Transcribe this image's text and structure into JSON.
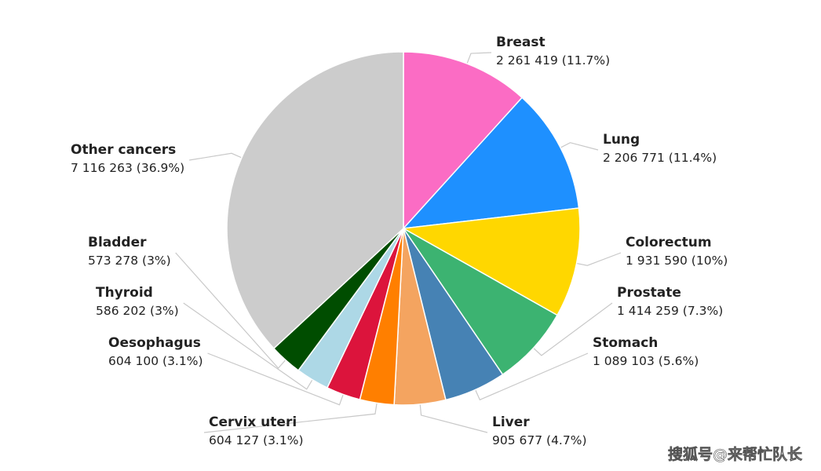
{
  "chart_data": {
    "type": "pie",
    "categories": [
      "Breast",
      "Lung",
      "Colorectum",
      "Prostate",
      "Stomach",
      "Liver",
      "Cervix uteri",
      "Oesophagus",
      "Thyroid",
      "Bladder",
      "Other cancers"
    ],
    "values": [
      2261419,
      2206771,
      1931590,
      1414259,
      1089103,
      905677,
      604127,
      604100,
      586202,
      573278,
      7116263
    ],
    "value_labels": [
      "2 261 419 (11.7%)",
      "2 206 771 (11.4%)",
      "1 931 590 (10%)",
      "1 414 259 (7.3%)",
      "1 089 103 (5.6%)",
      "905 677 (4.7%)",
      "604 127 (3.1%)",
      "604 100 (3.1%)",
      "586 202 (3%)",
      "573 278 (3%)",
      "7 116 263 (36.9%)"
    ],
    "colors": [
      "#fb6cc4",
      "#1e90ff",
      "#ffd700",
      "#3cb371",
      "#4682b4",
      "#f4a460",
      "#ff7f00",
      "#dc143c",
      "#add8e6",
      "#004d00",
      "#cccccc"
    ],
    "watermark": "搜狐号@来帮忙队长"
  }
}
